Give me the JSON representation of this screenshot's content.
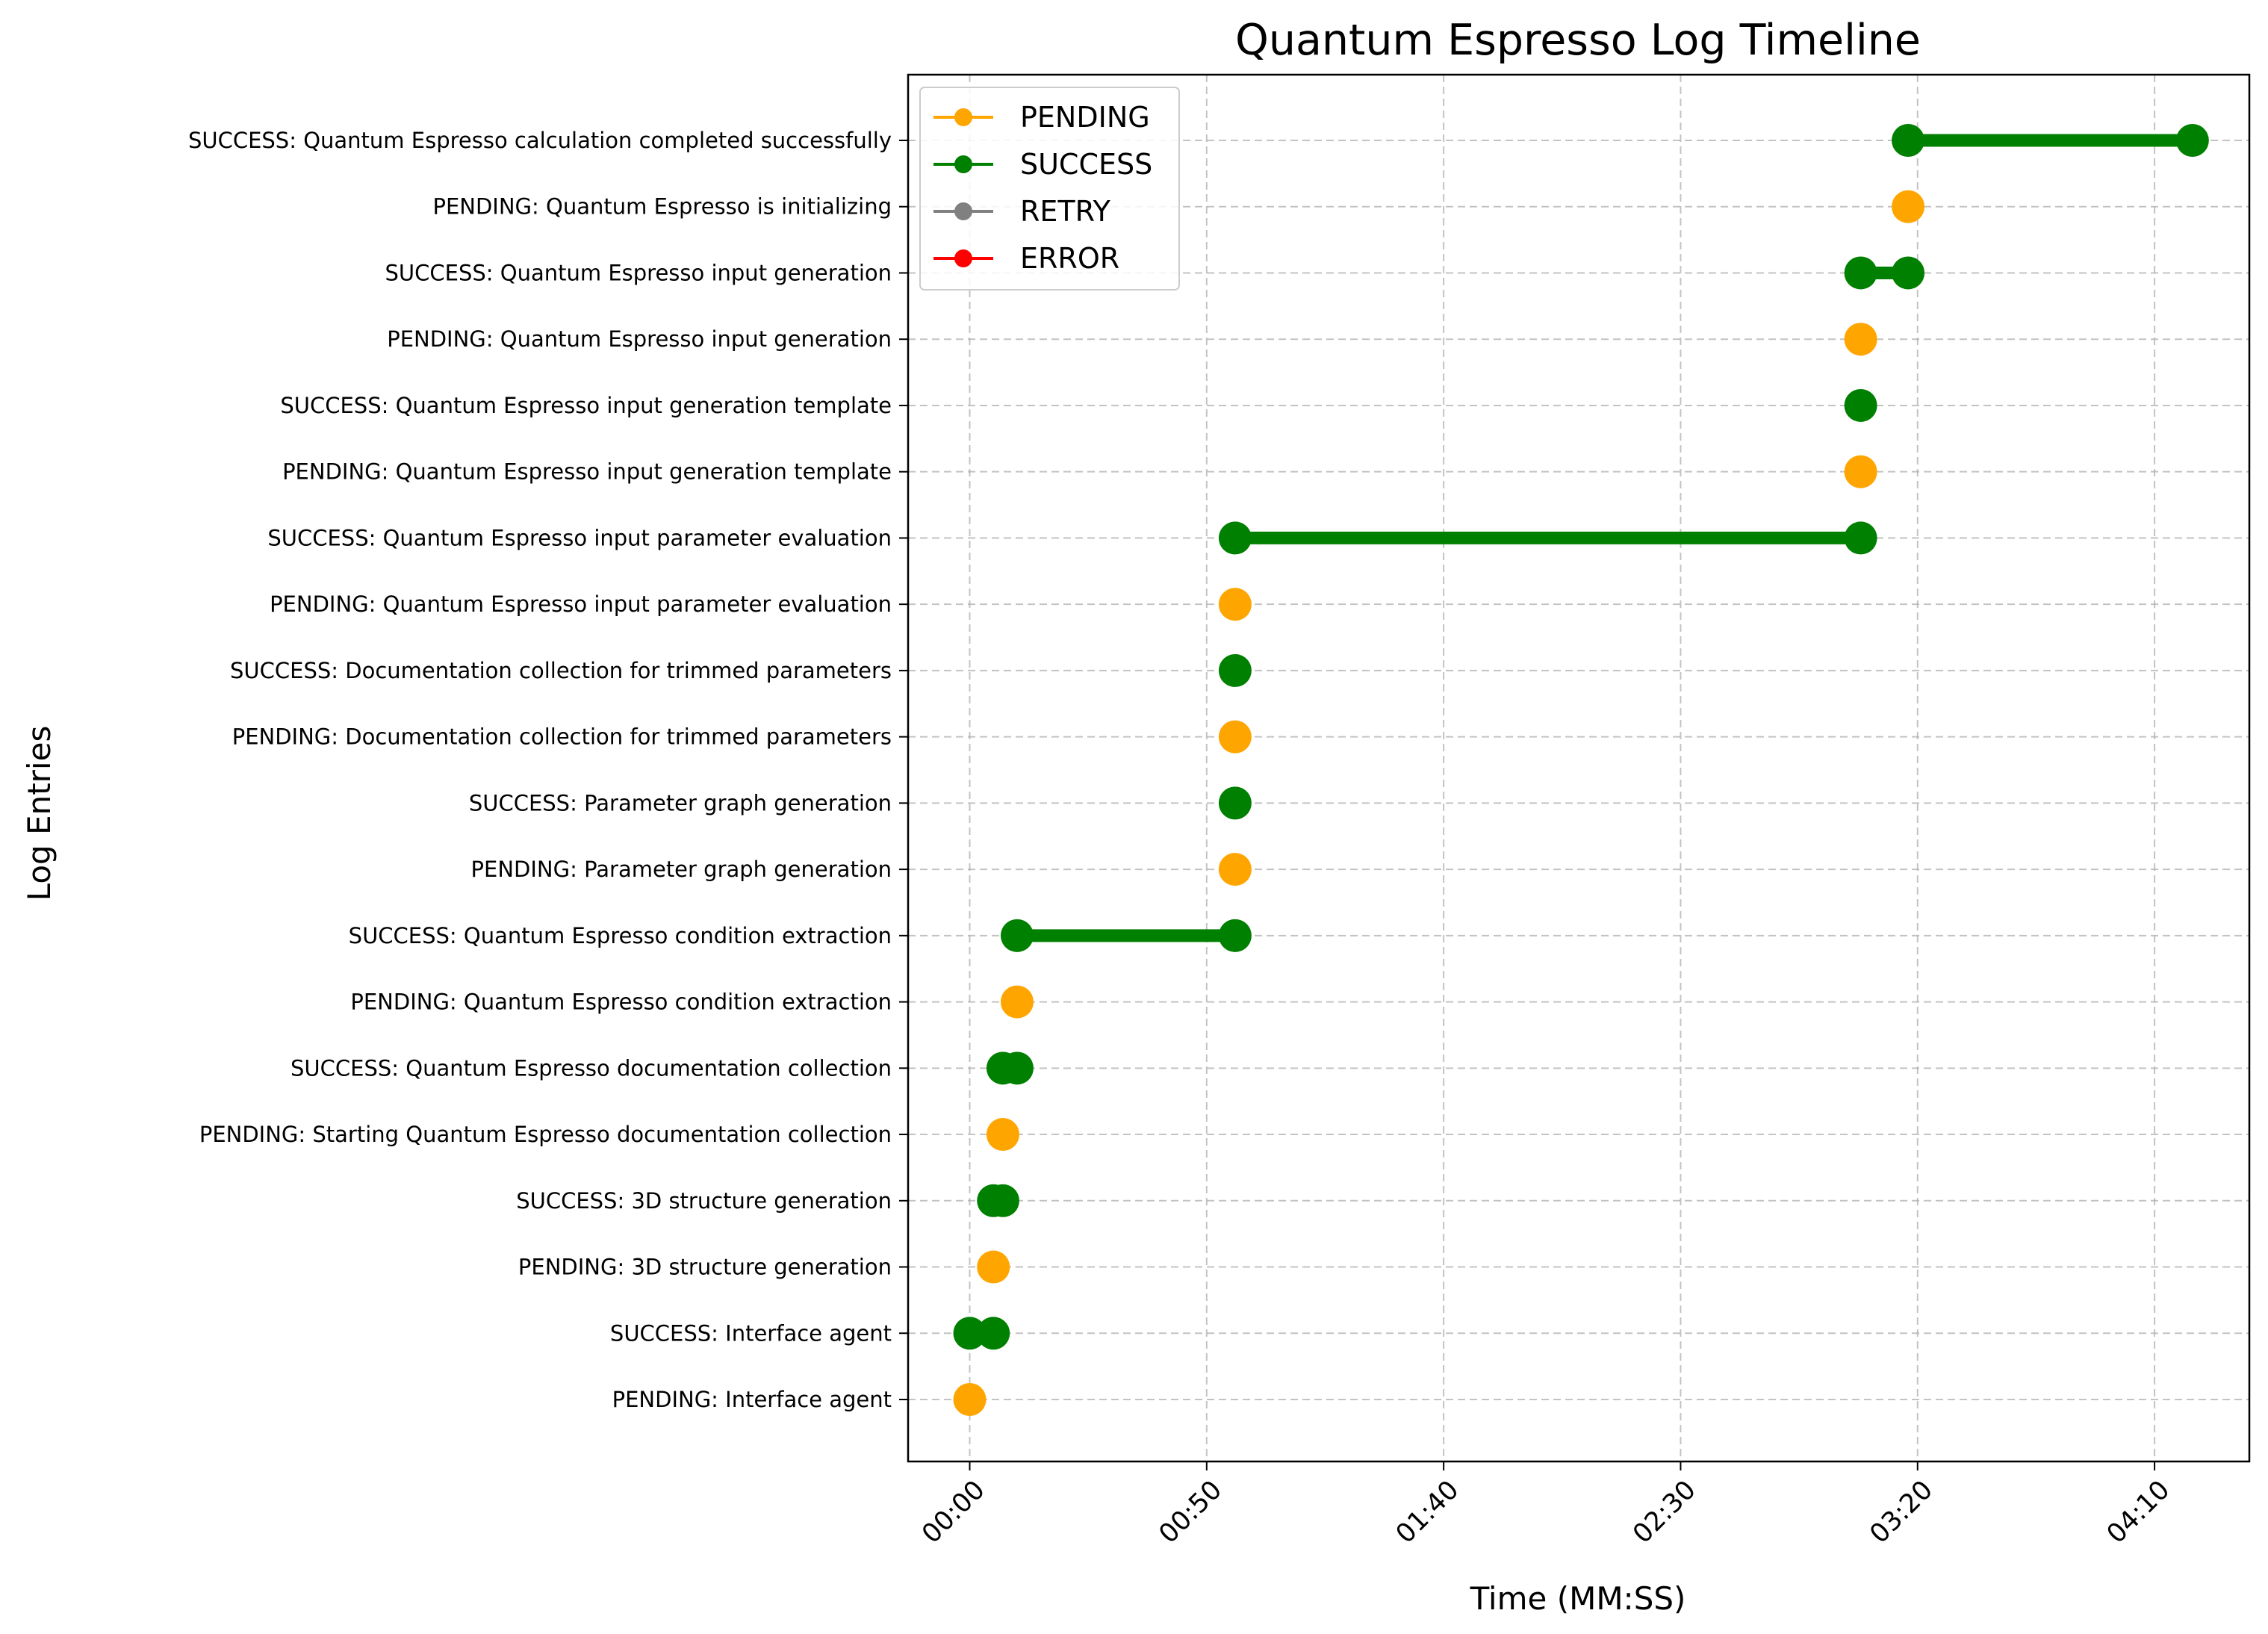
{
  "chart_data": {
    "type": "line",
    "title": "Quantum Espresso Log Timeline",
    "xlabel": "Time (MM:SS)",
    "ylabel": "Log Entries",
    "xlim": [
      -13,
      270
    ],
    "x_ticks": [
      {
        "value": 0,
        "label": "00:00"
      },
      {
        "value": 50,
        "label": "00:50"
      },
      {
        "value": 100,
        "label": "01:40"
      },
      {
        "value": 150,
        "label": "02:30"
      },
      {
        "value": 200,
        "label": "03:20"
      },
      {
        "value": 250,
        "label": "04:10"
      }
    ],
    "grid": true,
    "legend_position": "top-left",
    "status_colors": {
      "PENDING": "#ffa500",
      "SUCCESS": "#008000",
      "RETRY": "#808080",
      "ERROR": "#ff0000"
    },
    "legend": [
      "PENDING",
      "SUCCESS",
      "RETRY",
      "ERROR"
    ],
    "entries": [
      {
        "label": "PENDING: Interface agent",
        "status": "PENDING",
        "start": 0,
        "end": 0
      },
      {
        "label": "SUCCESS: Interface agent",
        "status": "SUCCESS",
        "start": 0,
        "end": 5
      },
      {
        "label": "PENDING: 3D structure generation",
        "status": "PENDING",
        "start": 5,
        "end": 5
      },
      {
        "label": "SUCCESS: 3D structure generation",
        "status": "SUCCESS",
        "start": 5,
        "end": 7
      },
      {
        "label": "PENDING: Starting Quantum Espresso documentation collection",
        "status": "PENDING",
        "start": 7,
        "end": 7
      },
      {
        "label": "SUCCESS: Quantum Espresso documentation collection",
        "status": "SUCCESS",
        "start": 7,
        "end": 10
      },
      {
        "label": "PENDING: Quantum Espresso condition extraction",
        "status": "PENDING",
        "start": 10,
        "end": 10
      },
      {
        "label": "SUCCESS: Quantum Espresso condition extraction",
        "status": "SUCCESS",
        "start": 10,
        "end": 56
      },
      {
        "label": "PENDING: Parameter graph generation",
        "status": "PENDING",
        "start": 56,
        "end": 56
      },
      {
        "label": "SUCCESS: Parameter graph generation",
        "status": "SUCCESS",
        "start": 56,
        "end": 56
      },
      {
        "label": "PENDING: Documentation collection for trimmed parameters",
        "status": "PENDING",
        "start": 56,
        "end": 56
      },
      {
        "label": "SUCCESS: Documentation collection for trimmed parameters",
        "status": "SUCCESS",
        "start": 56,
        "end": 56
      },
      {
        "label": "PENDING: Quantum Espresso input parameter evaluation",
        "status": "PENDING",
        "start": 56,
        "end": 56
      },
      {
        "label": "SUCCESS: Quantum Espresso input parameter evaluation",
        "status": "SUCCESS",
        "start": 56,
        "end": 188
      },
      {
        "label": "PENDING: Quantum Espresso input generation template",
        "status": "PENDING",
        "start": 188,
        "end": 188
      },
      {
        "label": "SUCCESS: Quantum Espresso input generation template",
        "status": "SUCCESS",
        "start": 188,
        "end": 188
      },
      {
        "label": "PENDING: Quantum Espresso input generation",
        "status": "PENDING",
        "start": 188,
        "end": 188
      },
      {
        "label": "SUCCESS: Quantum Espresso input generation",
        "status": "SUCCESS",
        "start": 188,
        "end": 198
      },
      {
        "label": "PENDING: Quantum Espresso is initializing",
        "status": "PENDING",
        "start": 198,
        "end": 198
      },
      {
        "label": "SUCCESS: Quantum Espresso calculation completed successfully",
        "status": "SUCCESS",
        "start": 198,
        "end": 258
      }
    ]
  }
}
